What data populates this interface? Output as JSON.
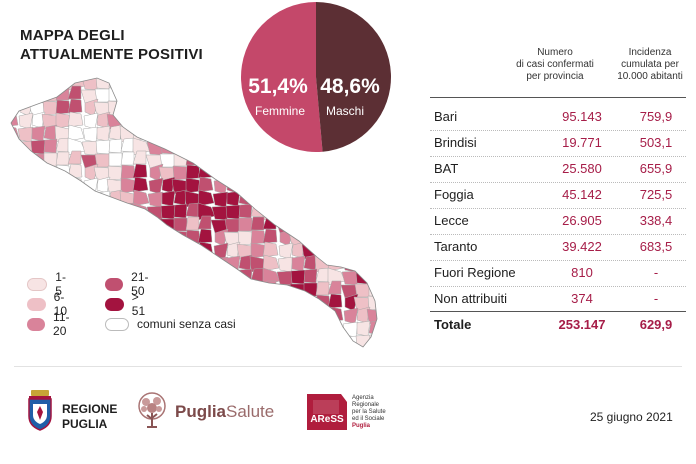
{
  "title": "MAPPA DEGLI ATTUALMENTE POSITIVI",
  "colors": {
    "femmine": "#c4486a",
    "maschi": "#5c2f34",
    "class_1_5": "#f7e4e4",
    "class_6_10": "#eec0c6",
    "class_11_20": "#d9839a",
    "class_21_50": "#c05070",
    "class_gt_51": "#a3133f",
    "class_zero": "#ffffff"
  },
  "gender": {
    "femmine": {
      "value": "51,4%",
      "label": "Femmine"
    },
    "maschi": {
      "value": "48,6%",
      "label": "Maschi"
    }
  },
  "legend": [
    {
      "label": "1-5"
    },
    {
      "label": "21-50"
    },
    {
      "label": "6-10"
    },
    {
      "label": "> 51"
    },
    {
      "label": "11-20"
    },
    {
      "label": "comuni senza casi"
    }
  ],
  "table": {
    "col1_header": "Numero di casi confermati per provincia",
    "col1_header_lines": [
      "Numero",
      "di casi confermati",
      "per provincia"
    ],
    "col2_header_lines": [
      "Incidenza",
      "cumulata per",
      "10.000 abitanti"
    ],
    "rows": [
      {
        "name": "Bari",
        "casi": "95.143",
        "incidenza": "759,9"
      },
      {
        "name": "Brindisi",
        "casi": "19.771",
        "incidenza": "503,1"
      },
      {
        "name": "BAT",
        "casi": "25.580",
        "incidenza": "655,9"
      },
      {
        "name": "Foggia",
        "casi": "45.142",
        "incidenza": "725,5"
      },
      {
        "name": "Lecce",
        "casi": "26.905",
        "incidenza": "338,4"
      },
      {
        "name": "Taranto",
        "casi": "39.422",
        "incidenza": "683,5"
      },
      {
        "name": "Fuori Regione",
        "casi": "810",
        "incidenza": "-"
      },
      {
        "name": "Non attribuiti",
        "casi": "374",
        "incidenza": "-"
      }
    ],
    "total": {
      "name": "Totale",
      "casi": "253.147",
      "incidenza": "629,9"
    }
  },
  "chart_data": {
    "type": "pie",
    "categories": [
      "Femmine",
      "Maschi"
    ],
    "values": [
      51.4,
      48.6
    ]
  },
  "footer": {
    "regione_line1": "REGIONE",
    "regione_line2": "PUGLIA",
    "puglia_bold": "Puglia",
    "puglia_light": "Salute",
    "aress_logo_text": "AReSS",
    "aress_lines": [
      "Agenzia",
      "Regionale",
      "per la Salute",
      "ed il Sociale"
    ],
    "aress_puglia": "Puglia",
    "date": "25 giugno 2021"
  }
}
